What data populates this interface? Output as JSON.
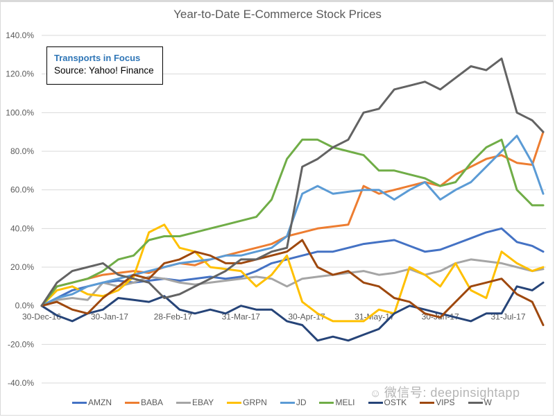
{
  "chart_data": {
    "type": "line",
    "title": "Year-to-Date E-Commerce Stock Prices",
    "xlabel": "",
    "ylabel": "",
    "ylim": [
      -40,
      140
    ],
    "yticks": [
      "140.0%",
      "120.0%",
      "100.0%",
      "80.0%",
      "60.0%",
      "40.0%",
      "20.0%",
      "0.0%",
      "-20.0%",
      "-40.0%"
    ],
    "ytick_values": [
      140,
      120,
      100,
      80,
      60,
      40,
      20,
      0,
      -20,
      -40
    ],
    "xtick_labels": [
      "30-Dec-16",
      "30-Jan-17",
      "28-Feb-17",
      "31-Mar-17",
      "30-Apr-17",
      "31-May-17",
      "30-Jun-17",
      "31-Jul-17"
    ],
    "xtick_days": [
      0,
      31,
      60,
      91,
      121,
      152,
      182,
      213
    ],
    "xlim_days": [
      0,
      229
    ],
    "grid": true,
    "legend_position": "bottom",
    "x_days": [
      0,
      7,
      14,
      21,
      28,
      35,
      42,
      49,
      56,
      63,
      70,
      77,
      84,
      91,
      98,
      105,
      112,
      119,
      126,
      133,
      140,
      147,
      154,
      161,
      168,
      175,
      182,
      189,
      196,
      203,
      210,
      217,
      224,
      229
    ],
    "series": [
      {
        "name": "AMZN",
        "color": "#4472c4",
        "values": [
          0,
          4,
          8,
          10,
          12,
          13,
          12,
          13,
          14,
          13,
          14,
          15,
          14,
          15,
          18,
          22,
          24,
          26,
          28,
          28,
          30,
          32,
          33,
          34,
          31,
          28,
          29,
          32,
          35,
          38,
          40,
          33,
          31,
          28
        ]
      },
      {
        "name": "BABA",
        "color": "#ed7d31",
        "values": [
          0,
          10,
          12,
          14,
          16,
          17,
          18,
          17,
          20,
          22,
          21,
          24,
          26,
          28,
          30,
          32,
          36,
          38,
          40,
          41,
          42,
          62,
          58,
          60,
          62,
          64,
          62,
          68,
          72,
          76,
          78,
          74,
          73,
          90
        ]
      },
      {
        "name": "EBAY",
        "color": "#a5a5a5",
        "values": [
          0,
          3,
          4,
          3,
          12,
          10,
          12,
          15,
          14,
          12,
          11,
          12,
          13,
          14,
          15,
          14,
          10,
          14,
          15,
          16,
          17,
          18,
          16,
          17,
          19,
          16,
          18,
          22,
          24,
          23,
          22,
          20,
          18,
          19
        ]
      },
      {
        "name": "GRPN",
        "color": "#ffc000",
        "values": [
          0,
          8,
          10,
          6,
          5,
          8,
          15,
          38,
          42,
          30,
          28,
          20,
          19,
          18,
          10,
          16,
          26,
          2,
          -4,
          -8,
          -8,
          -8,
          -2,
          -4,
          20,
          16,
          10,
          22,
          8,
          4,
          28,
          22,
          18,
          20
        ]
      },
      {
        "name": "JD",
        "color": "#5b9bd5",
        "values": [
          0,
          4,
          6,
          10,
          12,
          14,
          16,
          18,
          20,
          22,
          23,
          24,
          26,
          26,
          28,
          30,
          36,
          58,
          62,
          58,
          59,
          60,
          60,
          55,
          60,
          64,
          55,
          60,
          64,
          72,
          80,
          88,
          74,
          58
        ]
      },
      {
        "name": "MELI",
        "color": "#70ad47",
        "values": [
          0,
          10,
          12,
          14,
          18,
          24,
          26,
          34,
          36,
          36,
          38,
          40,
          42,
          44,
          46,
          55,
          76,
          86,
          86,
          82,
          80,
          78,
          70,
          70,
          68,
          66,
          62,
          64,
          74,
          82,
          86,
          60,
          52,
          52
        ]
      },
      {
        "name": "OSTK",
        "color": "#264478",
        "values": [
          0,
          -5,
          -8,
          -4,
          -2,
          4,
          3,
          2,
          5,
          -2,
          -4,
          -2,
          -4,
          0,
          -2,
          -2,
          -8,
          -10,
          -18,
          -16,
          -18,
          -15,
          -12,
          -4,
          0,
          -2,
          -4,
          -6,
          -8,
          -4,
          -4,
          10,
          8,
          12
        ]
      },
      {
        "name": "VIPS",
        "color": "#9e480e",
        "values": [
          0,
          2,
          -2,
          -4,
          4,
          10,
          16,
          14,
          22,
          24,
          28,
          26,
          22,
          22,
          24,
          26,
          28,
          34,
          20,
          16,
          18,
          12,
          10,
          4,
          2,
          -4,
          -6,
          2,
          10,
          12,
          14,
          6,
          2,
          -10
        ]
      },
      {
        "name": "W",
        "color": "#636363",
        "values": [
          0,
          12,
          18,
          20,
          22,
          16,
          14,
          12,
          4,
          6,
          10,
          14,
          18,
          24,
          24,
          28,
          30,
          72,
          76,
          82,
          86,
          100,
          102,
          112,
          114,
          116,
          112,
          118,
          124,
          122,
          128,
          100,
          96,
          90
        ]
      }
    ]
  },
  "annotation": {
    "title": "Transports in Focus",
    "source": "Source: Yahoo! Finance"
  },
  "watermark": {
    "icon": "wechat-icon",
    "text": "微信号: deepinsightapp"
  }
}
